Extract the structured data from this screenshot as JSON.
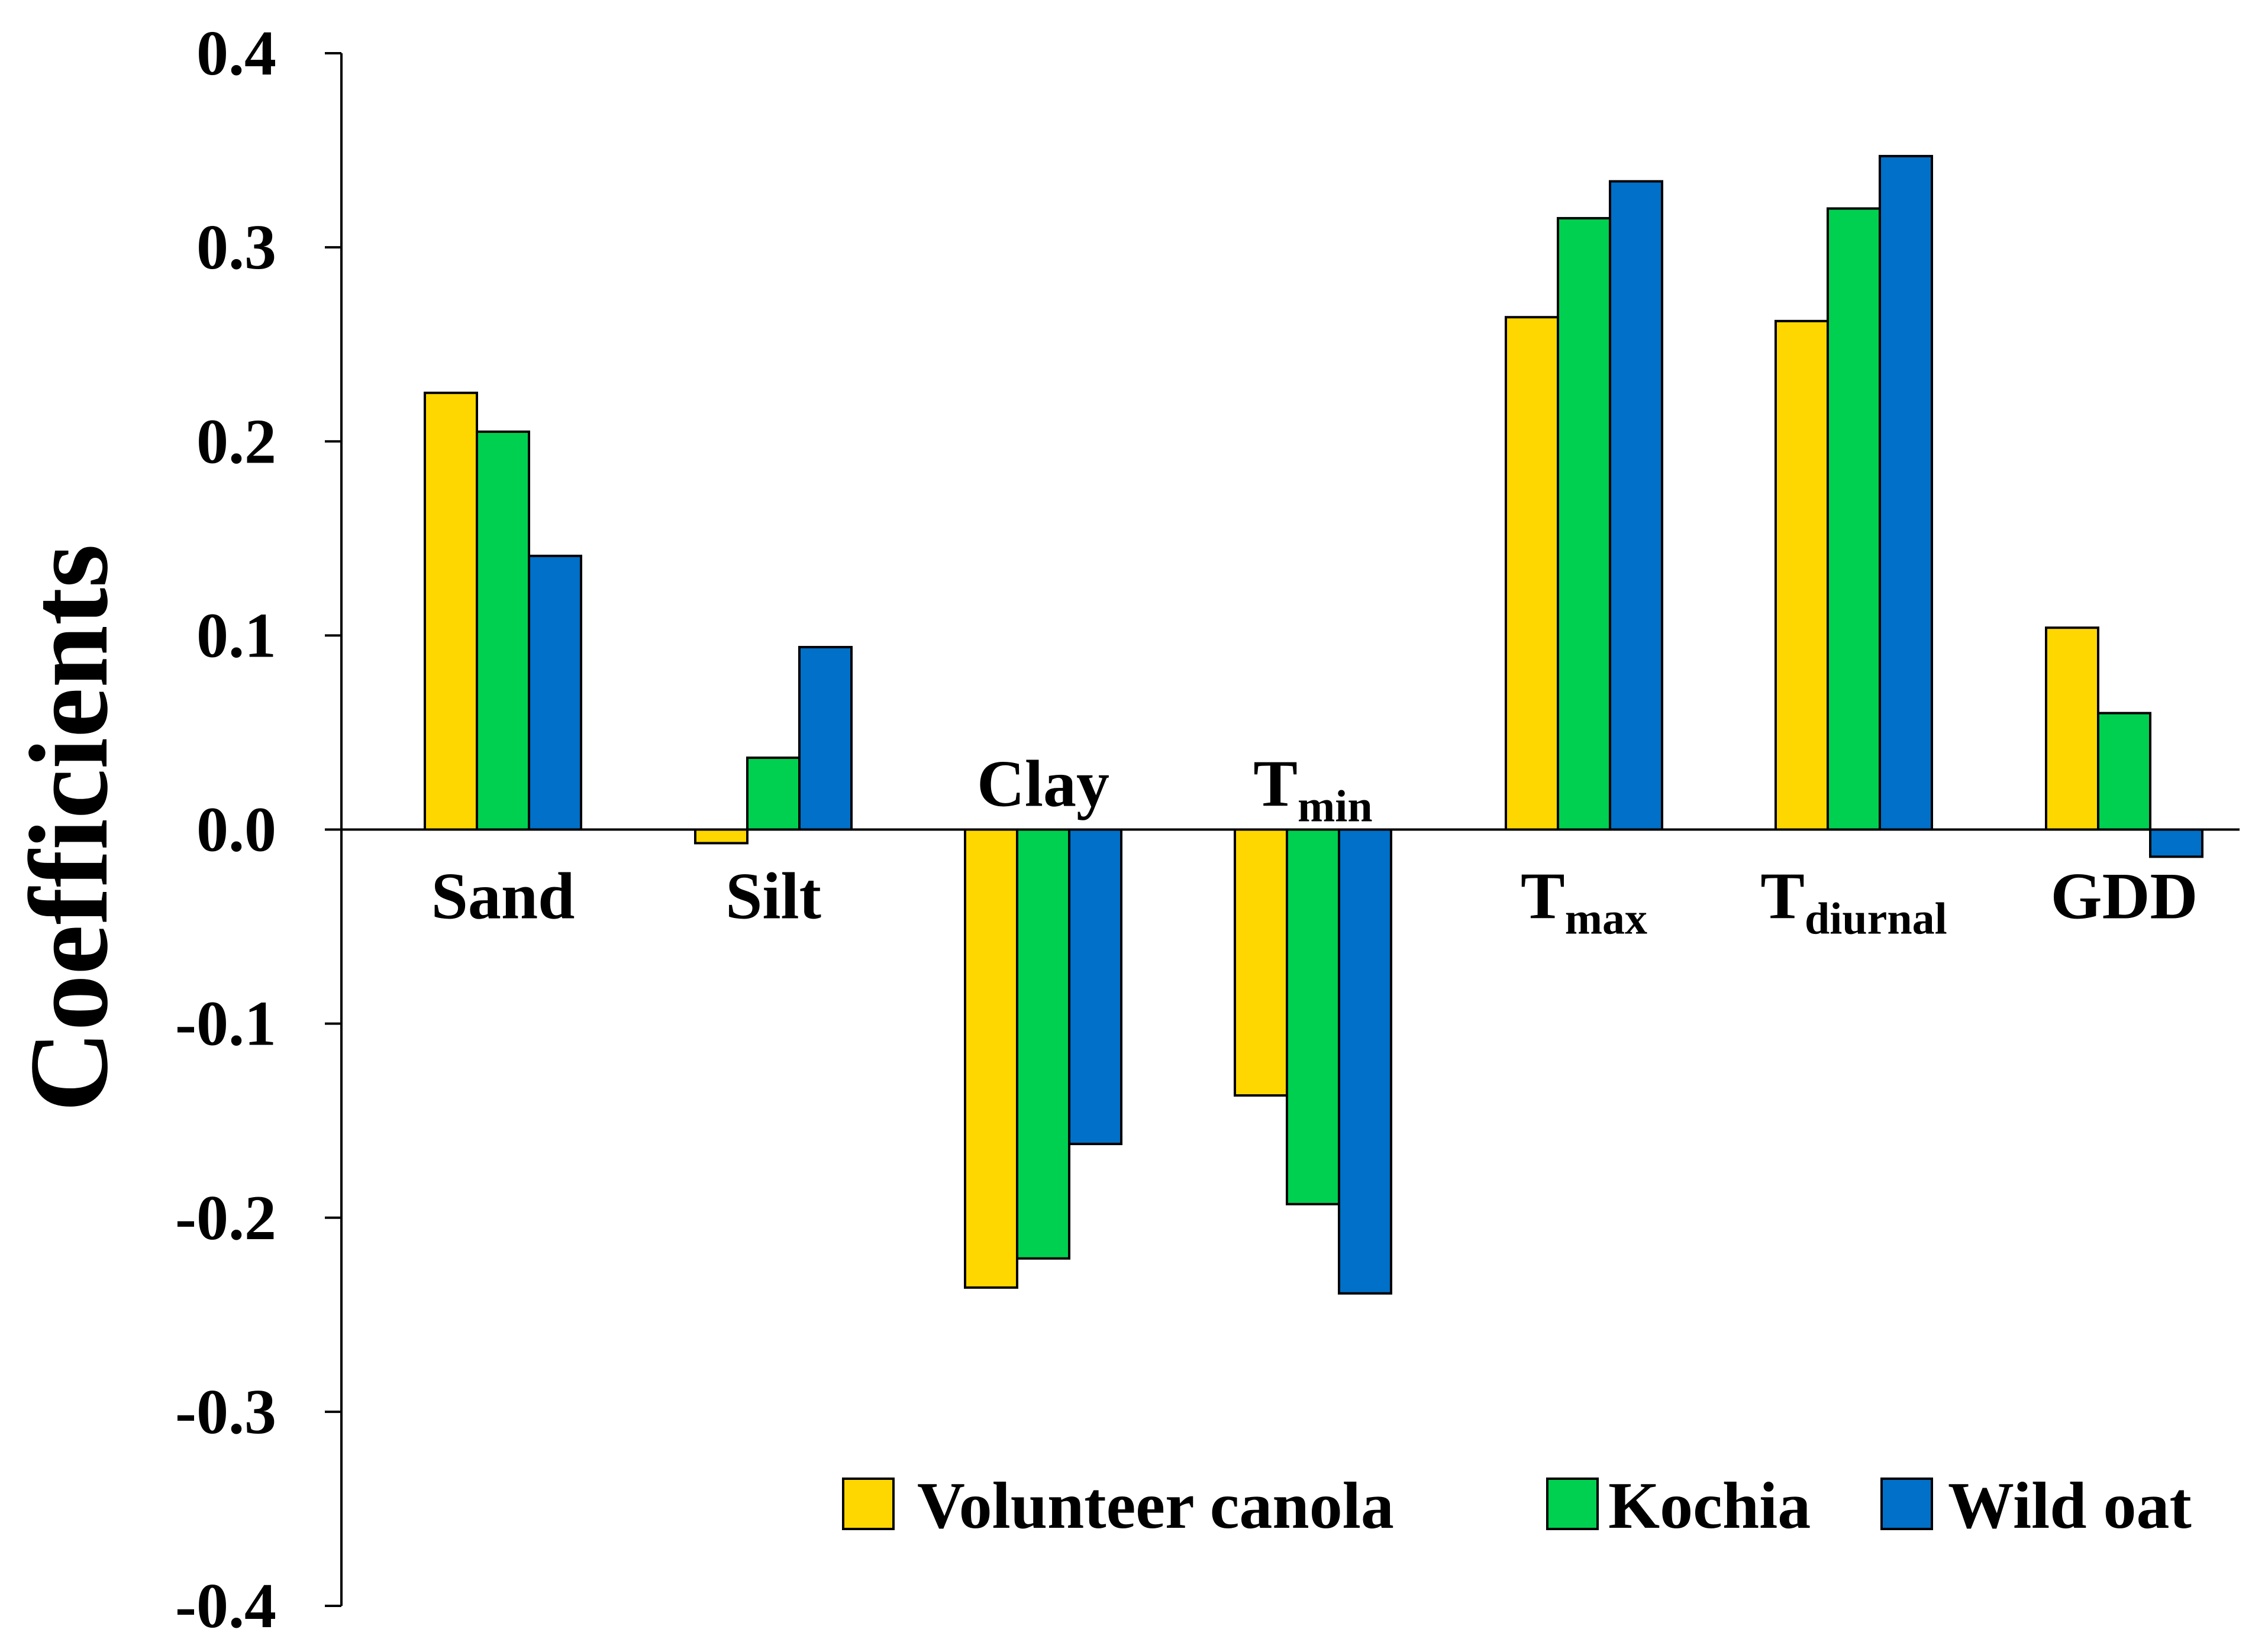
{
  "chart_data": {
    "type": "bar",
    "title": "",
    "xlabel": "",
    "ylabel": "Coefficients",
    "ylim": [
      -0.4,
      0.4
    ],
    "yticks": [
      "0.4",
      "0.3",
      "0.2",
      "0.1",
      "0.0",
      "-0.1",
      "-0.2",
      "-0.3",
      "-0.4"
    ],
    "yticks_values": [
      0.4,
      0.3,
      0.2,
      0.1,
      0.0,
      -0.1,
      -0.2,
      -0.3,
      -0.4
    ],
    "categories": [
      {
        "main": "Sand",
        "sub": "",
        "label_position": "below-axis"
      },
      {
        "main": "Silt",
        "sub": "",
        "label_position": "below-axis"
      },
      {
        "main": "Clay",
        "sub": "",
        "label_position": "above-axis"
      },
      {
        "main": "T",
        "sub": "min",
        "label_position": "above-axis"
      },
      {
        "main": "T",
        "sub": "max",
        "label_position": "below-axis"
      },
      {
        "main": "T",
        "sub": "diurnal",
        "label_position": "below-axis"
      },
      {
        "main": "GDD",
        "sub": "",
        "label_position": "below-axis"
      }
    ],
    "series": [
      {
        "name": "Volunteer canola",
        "color": "#FFD700",
        "values": [
          0.225,
          -0.007,
          -0.236,
          -0.137,
          0.264,
          0.262,
          0.104
        ]
      },
      {
        "name": "Kochia",
        "color": "#00D050",
        "values": [
          0.205,
          0.037,
          -0.221,
          -0.193,
          0.315,
          0.32,
          0.06
        ]
      },
      {
        "name": "Wild oat",
        "color": "#0070C8",
        "values": [
          0.141,
          0.094,
          -0.162,
          -0.239,
          0.334,
          0.347,
          -0.014
        ]
      }
    ],
    "legend": {
      "placement": "bottom-right"
    }
  }
}
